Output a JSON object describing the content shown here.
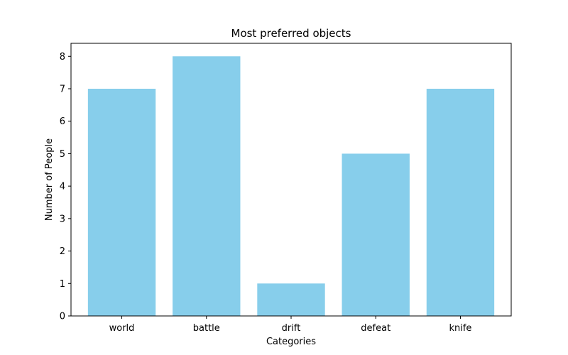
{
  "chart_data": {
    "type": "bar",
    "title": "Most preferred objects",
    "xlabel": "Categories",
    "ylabel": "Number of People",
    "categories": [
      "world",
      "battle",
      "drift",
      "defeat",
      "knife"
    ],
    "values": [
      7,
      8,
      1,
      5,
      7
    ],
    "ylim": [
      0,
      8.4
    ],
    "yticks": [
      0,
      1,
      2,
      3,
      4,
      5,
      6,
      7,
      8
    ],
    "bar_color": "#87ceeb",
    "grid": false,
    "legend": false
  }
}
